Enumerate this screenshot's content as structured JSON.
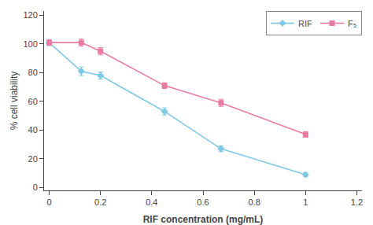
{
  "chart_data": {
    "type": "line",
    "xlabel": "RIF concentration (mg/mL)",
    "ylabel": "% cell viability",
    "x": [
      0,
      0.125,
      0.2,
      0.45,
      0.67,
      1.0
    ],
    "series": [
      {
        "name": "RIF",
        "color": "#7ec8e3",
        "marker": "diamond",
        "values": [
          101,
          81,
          78,
          53,
          27,
          9
        ],
        "yerr": [
          2,
          3,
          2.5,
          2.5,
          2,
          1.5
        ]
      },
      {
        "name": "F₅",
        "color": "#e87ca0",
        "marker": "square",
        "values": [
          101,
          101,
          95,
          71,
          59,
          37
        ],
        "yerr": [
          2,
          2.5,
          2.5,
          2,
          2.5,
          2
        ]
      }
    ],
    "xlim": [
      -0.02,
      1.22
    ],
    "ylim": [
      -2,
      123
    ],
    "xticks": [
      0,
      0.2,
      0.4,
      0.6,
      0.8,
      1,
      1.2
    ],
    "yticks": [
      0,
      20,
      40,
      60,
      80,
      100,
      120
    ],
    "grid": false,
    "legend": "upper right"
  }
}
